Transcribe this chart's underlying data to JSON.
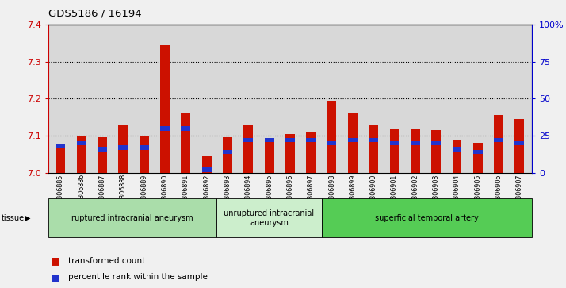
{
  "title": "GDS5186 / 16194",
  "samples": [
    "GSM1306885",
    "GSM1306886",
    "GSM1306887",
    "GSM1306888",
    "GSM1306889",
    "GSM1306890",
    "GSM1306891",
    "GSM1306892",
    "GSM1306893",
    "GSM1306894",
    "GSM1306895",
    "GSM1306896",
    "GSM1306897",
    "GSM1306898",
    "GSM1306899",
    "GSM1306900",
    "GSM1306901",
    "GSM1306902",
    "GSM1306903",
    "GSM1306904",
    "GSM1306905",
    "GSM1306906",
    "GSM1306907"
  ],
  "red_values": [
    7.07,
    7.1,
    7.095,
    7.13,
    7.1,
    7.345,
    7.16,
    7.045,
    7.095,
    7.13,
    7.09,
    7.105,
    7.11,
    7.195,
    7.16,
    7.13,
    7.12,
    7.12,
    7.115,
    7.09,
    7.08,
    7.155,
    7.145
  ],
  "blue_values": [
    18,
    20,
    16,
    17,
    17,
    30,
    30,
    2,
    14,
    22,
    22,
    22,
    22,
    20,
    22,
    22,
    20,
    20,
    20,
    16,
    14,
    22,
    20
  ],
  "ylim_left": [
    7.0,
    7.4
  ],
  "ylim_right": [
    0,
    100
  ],
  "yticks_left": [
    7.0,
    7.1,
    7.2,
    7.3,
    7.4
  ],
  "yticks_right": [
    0,
    25,
    50,
    75,
    100
  ],
  "ytick_labels_right": [
    "0",
    "25",
    "50",
    "75",
    "100%"
  ],
  "grid_values": [
    7.1,
    7.2,
    7.3
  ],
  "groups": [
    {
      "label": "ruptured intracranial aneurysm",
      "start": 0,
      "end": 8,
      "color": "#aaddaa"
    },
    {
      "label": "unruptured intracranial\naneurysm",
      "start": 8,
      "end": 13,
      "color": "#cceecc"
    },
    {
      "label": "superficial temporal artery",
      "start": 13,
      "end": 23,
      "color": "#55cc55"
    }
  ],
  "bar_color": "#cc1100",
  "blue_color": "#2233cc",
  "fig_bg": "#f0f0f0",
  "plot_bg": "#d8d8d8",
  "left_tick_color": "#cc0000",
  "right_tick_color": "#0000cc",
  "bar_width": 0.45
}
